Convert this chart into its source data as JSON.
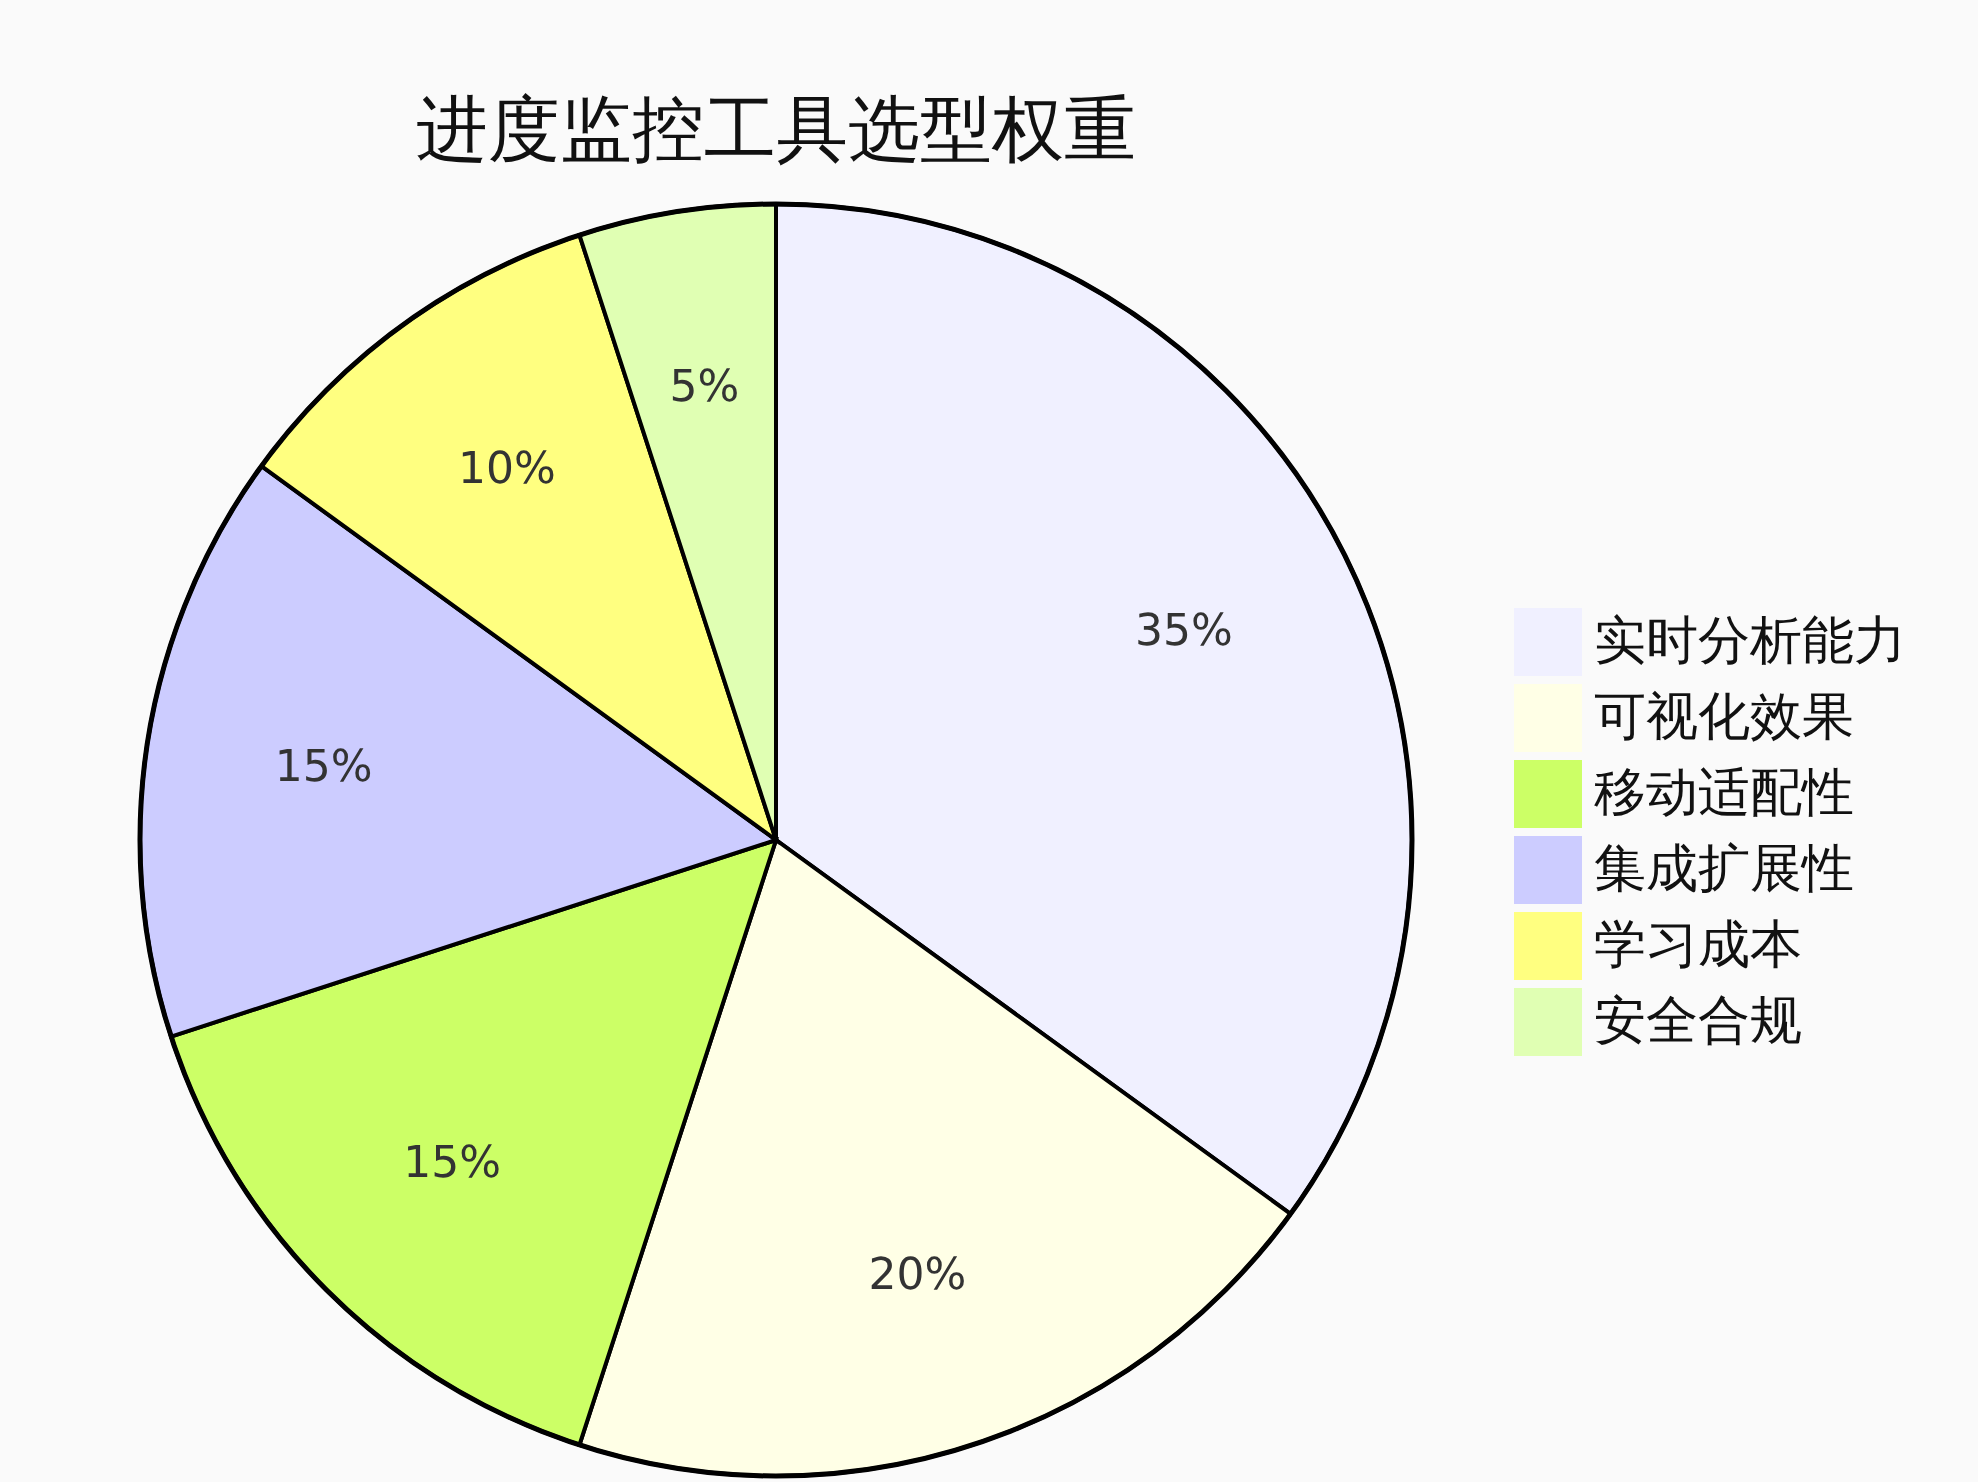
{
  "chart_data": {
    "type": "pie",
    "title": "进度监控工具选型权重",
    "categories": [
      "实时分析能力",
      "可视化效果",
      "移动适配性",
      "集成扩展性",
      "学习成本",
      "安全合规"
    ],
    "values": [
      35,
      20,
      15,
      15,
      10,
      5
    ],
    "colors": [
      "#f0f0ff",
      "#ffffe6",
      "#ccff66",
      "#ccccff",
      "#ffff80",
      "#e0ffb3"
    ],
    "value_labels": [
      "35%",
      "20%",
      "15%",
      "15%",
      "10%",
      "5%"
    ],
    "legend": "right"
  }
}
